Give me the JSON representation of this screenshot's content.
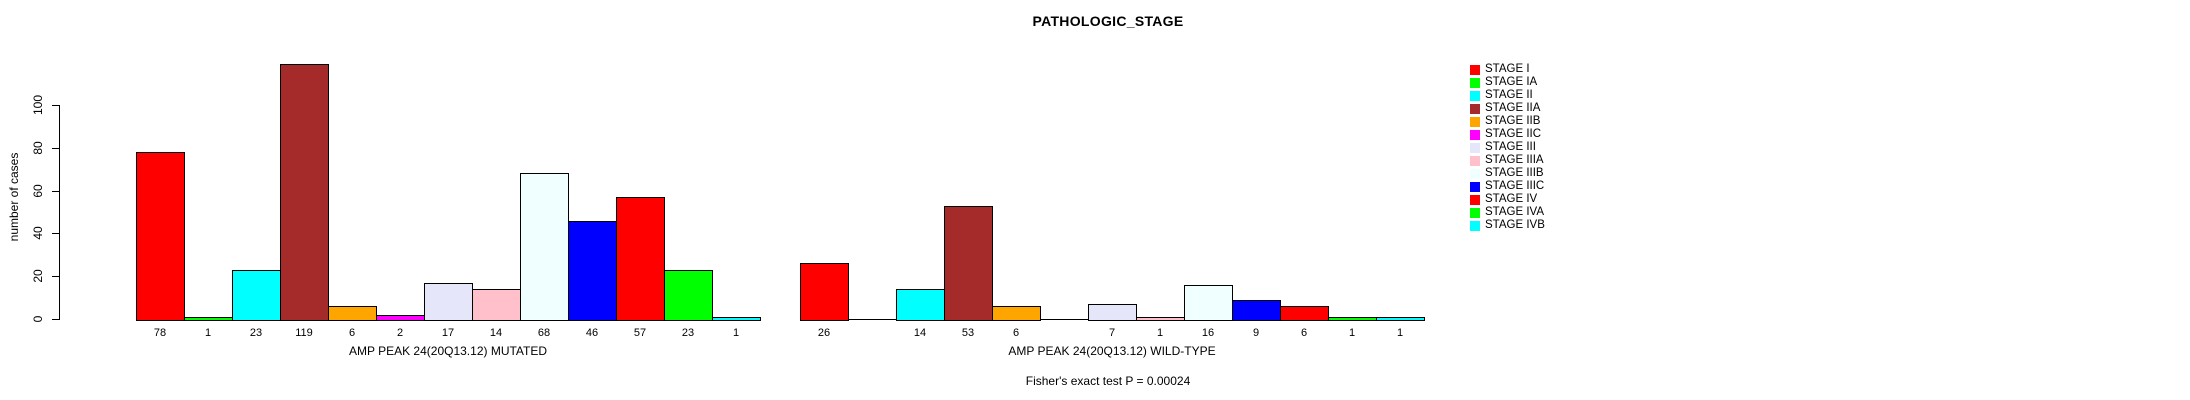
{
  "title": "PATHOLOGIC_STAGE",
  "chart_data": {
    "type": "bar",
    "title": "PATHOLOGIC_STAGE",
    "ylabel": "number of cases",
    "ylim": [
      0,
      120
    ],
    "yticks": [
      0,
      20,
      40,
      60,
      80,
      100
    ],
    "grid": false,
    "legend_position": "right",
    "categories": [
      "STAGE I",
      "STAGE IA",
      "STAGE II",
      "STAGE IIA",
      "STAGE IIB",
      "STAGE IIC",
      "STAGE III",
      "STAGE IIIA",
      "STAGE IIIB",
      "STAGE IIIC",
      "STAGE IV",
      "STAGE IVA",
      "STAGE IVB"
    ],
    "colors": [
      "#FF0000",
      "#00FF00",
      "#00FFFF",
      "#A52A2A",
      "#FFA500",
      "#FF00FF",
      "#E6E6FA",
      "#FFC0CB",
      "#F0FFFF",
      "#0000FF",
      "#FF0000",
      "#00FF00",
      "#00FFFF"
    ],
    "groups": [
      {
        "xlabel": "AMP PEAK 24(20Q13.12) MUTATED",
        "values": [
          78,
          1,
          23,
          119,
          6,
          2,
          17,
          14,
          68,
          46,
          57,
          23,
          1
        ],
        "bar_labels": [
          "78",
          "1",
          "23",
          "119",
          "6",
          "2",
          "17",
          "14",
          "68",
          "46",
          "57",
          "23",
          "1"
        ]
      },
      {
        "xlabel": "AMP PEAK 24(20Q13.12) WILD-TYPE",
        "values": [
          26,
          0,
          14,
          53,
          6,
          0,
          7,
          1,
          16,
          9,
          6,
          1,
          1
        ],
        "bar_labels": [
          "26",
          "",
          "14",
          "53",
          "6",
          "",
          "7",
          "1",
          "16",
          "9",
          "6",
          "1",
          "1"
        ]
      }
    ],
    "annotation": "Fisher's exact test P = 0.00024",
    "legend": [
      {
        "label": "STAGE I",
        "color": "#FF0000"
      },
      {
        "label": "STAGE IA",
        "color": "#00FF00"
      },
      {
        "label": "STAGE II",
        "color": "#00FFFF"
      },
      {
        "label": "STAGE IIA",
        "color": "#A52A2A"
      },
      {
        "label": "STAGE IIB",
        "color": "#FFA500"
      },
      {
        "label": "STAGE IIC",
        "color": "#FF00FF"
      },
      {
        "label": "STAGE III",
        "color": "#E6E6FA"
      },
      {
        "label": "STAGE IIIA",
        "color": "#FFC0CB"
      },
      {
        "label": "STAGE IIIB",
        "color": "#F0FFFF"
      },
      {
        "label": "STAGE IIIC",
        "color": "#0000FF"
      },
      {
        "label": "STAGE IV",
        "color": "#FF0000"
      },
      {
        "label": "STAGE IVA",
        "color": "#00FF00"
      },
      {
        "label": "STAGE IVB",
        "color": "#00FFFF"
      }
    ]
  }
}
